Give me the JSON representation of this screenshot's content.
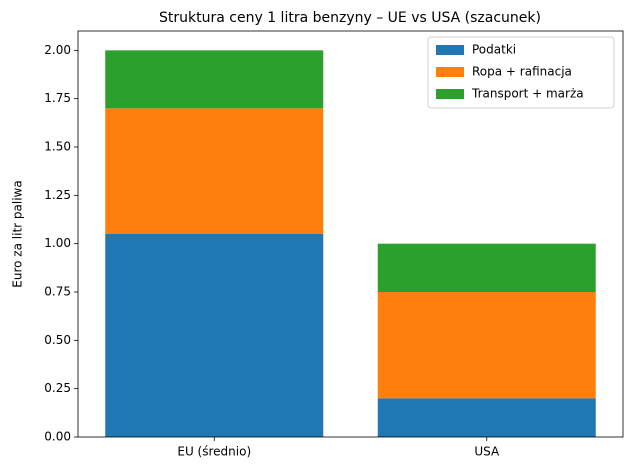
{
  "chart_data": {
    "type": "stacked_bar",
    "title": "Struktura ceny 1 litra benzyny – UE vs USA (szacunek)",
    "y_label": "Euro za litr paliwa",
    "categories": [
      "EU (średnio)",
      "USA"
    ],
    "series": [
      {
        "name": "Podatki",
        "color": "#1f77b4",
        "values": [
          1.05,
          0.2
        ]
      },
      {
        "name": "Ropa + rafinacja",
        "color": "#ff7f0e",
        "values": [
          0.65,
          0.55
        ]
      },
      {
        "name": "Transport + marża",
        "color": "#2ca02c",
        "values": [
          0.3,
          0.25
        ]
      }
    ],
    "ylim": [
      0,
      2.1
    ],
    "yticks": [
      {
        "value": 0,
        "label": "0.00"
      },
      {
        "value": 0.25,
        "label": "0.25"
      },
      {
        "value": 0.5,
        "label": "0.50"
      },
      {
        "value": 0.75,
        "label": "0.75"
      },
      {
        "value": 1,
        "label": "1.00"
      },
      {
        "value": 1.25,
        "label": "1.25"
      },
      {
        "value": 1.5,
        "label": "1.50"
      },
      {
        "value": 1.75,
        "label": "1.75"
      },
      {
        "value": 2,
        "label": "2.00"
      }
    ],
    "grid": false,
    "legend": "upper-right"
  }
}
